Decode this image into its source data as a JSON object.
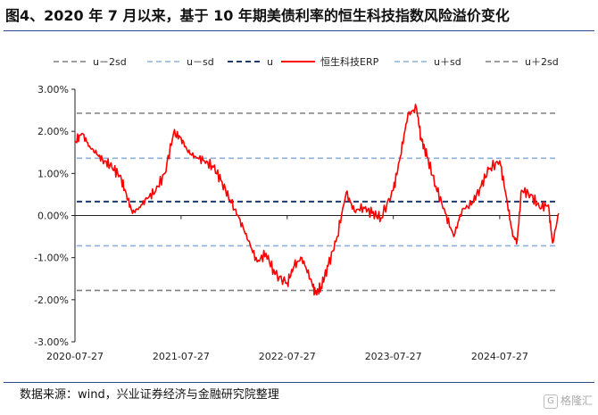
{
  "title": "图4、2020 年 7 月以来，基于 10 年期美债利率的恒生科技指数风险溢价变化",
  "source": "数据来源：wind，兴业证券经济与金融研究院整理",
  "watermark": "格隆汇",
  "colors": {
    "erp": "#ff0000",
    "mean": "#1f3a6e",
    "sd1": "#8fb1d9",
    "sd2": "#7f7f7f",
    "rule": "#2b4d8f"
  },
  "chart_data": {
    "type": "line",
    "title": "",
    "xlabel": "",
    "ylabel": "",
    "ylim": [
      -0.03,
      0.03
    ],
    "yticks": [
      {
        "value": 0.03,
        "label": "3.00%"
      },
      {
        "value": 0.02,
        "label": "2.00%"
      },
      {
        "value": 0.01,
        "label": "1.00%"
      },
      {
        "value": 0.0,
        "label": "0.00%"
      },
      {
        "value": -0.01,
        "label": "-1.00%"
      },
      {
        "value": -0.02,
        "label": "-2.00%"
      },
      {
        "value": -0.03,
        "label": "-3.00%"
      }
    ],
    "xlim": [
      "2020-07-27",
      "2025-02-15"
    ],
    "xticks": [
      "2020-07-27",
      "2021-07-27",
      "2022-07-27",
      "2023-07-27",
      "2024-07-27"
    ],
    "legend_position": "top",
    "legend": [
      "u－2sd",
      "u－sd",
      "u",
      "恒生科技ERP",
      "u＋sd",
      "u＋2sd"
    ],
    "reference_lines": [
      {
        "name": "u＋2sd",
        "value": 0.0243,
        "style": "dashed",
        "color": "#7f7f7f"
      },
      {
        "name": "u＋sd",
        "value": 0.0136,
        "style": "dashed",
        "color": "#8fb1d9"
      },
      {
        "name": "u",
        "value": 0.0033,
        "style": "dashed",
        "color": "#1f3a6e"
      },
      {
        "name": "u－sd",
        "value": -0.0072,
        "style": "dashed",
        "color": "#8fb1d9"
      },
      {
        "name": "u－2sd",
        "value": -0.0178,
        "style": "dashed",
        "color": "#7f7f7f"
      }
    ],
    "series": [
      {
        "name": "恒生科技ERP",
        "color": "#ff0000",
        "x": [
          "2020-07-27",
          "2020-08-20",
          "2020-09-15",
          "2020-10-10",
          "2020-11-05",
          "2020-12-01",
          "2020-12-28",
          "2021-01-20",
          "2021-02-10",
          "2021-03-05",
          "2021-04-01",
          "2021-05-01",
          "2021-06-01",
          "2021-07-01",
          "2021-07-27",
          "2021-08-20",
          "2021-09-15",
          "2021-10-15",
          "2021-11-15",
          "2021-12-15",
          "2022-01-15",
          "2022-02-15",
          "2022-03-15",
          "2022-04-15",
          "2022-05-15",
          "2022-06-15",
          "2022-07-27",
          "2022-08-20",
          "2022-09-15",
          "2022-10-15",
          "2022-11-01",
          "2022-11-20",
          "2022-12-15",
          "2023-01-15",
          "2023-02-15",
          "2023-03-15",
          "2023-04-15",
          "2023-05-15",
          "2023-06-15",
          "2023-07-27",
          "2023-08-20",
          "2023-09-15",
          "2023-10-15",
          "2023-10-30",
          "2023-11-20",
          "2023-12-20",
          "2024-01-22",
          "2024-02-20",
          "2024-03-20",
          "2024-04-20",
          "2024-05-20",
          "2024-06-20",
          "2024-07-27",
          "2024-08-20",
          "2024-09-10",
          "2024-09-25",
          "2024-10-10",
          "2024-11-10",
          "2024-12-10",
          "2025-01-10",
          "2025-01-25",
          "2025-02-15"
        ],
        "values": [
          0.0175,
          0.0195,
          0.0165,
          0.0145,
          0.013,
          0.0115,
          0.0095,
          0.005,
          0.0005,
          0.002,
          0.004,
          0.006,
          0.01,
          0.0195,
          0.0185,
          0.015,
          0.014,
          0.013,
          0.0115,
          0.008,
          0.003,
          -0.001,
          -0.006,
          -0.011,
          -0.009,
          -0.014,
          -0.016,
          -0.012,
          -0.01,
          -0.015,
          -0.0185,
          -0.017,
          -0.012,
          -0.005,
          0.0055,
          0.001,
          0.002,
          0.0005,
          -0.0005,
          0.006,
          0.014,
          0.024,
          0.0255,
          0.0185,
          0.014,
          0.007,
          0.0005,
          -0.005,
          0.0015,
          0.0025,
          0.0065,
          0.011,
          0.013,
          0.004,
          -0.005,
          -0.006,
          0.006,
          0.005,
          0.002,
          0.0025,
          -0.0065,
          0.0005
        ]
      }
    ]
  }
}
